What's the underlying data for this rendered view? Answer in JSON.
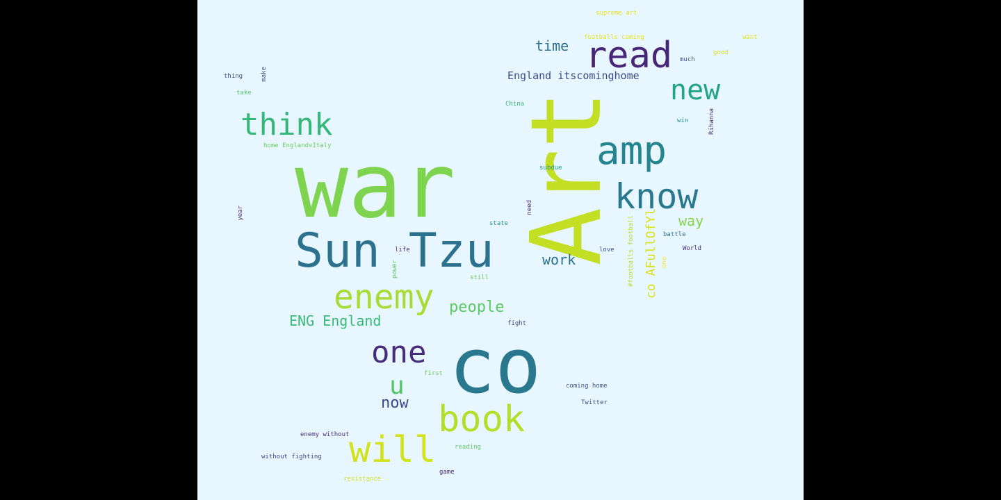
{
  "colors": {
    "background": "#e8f7ff",
    "outside": "#000000"
  },
  "words": [
    {
      "text": "war",
      "color": "#7ed34f"
    },
    {
      "text": "Art",
      "color": "#c2df23"
    },
    {
      "text": "co",
      "color": "#2a788e"
    },
    {
      "text": "Sun Tzu",
      "color": "#2c728e"
    },
    {
      "text": "read",
      "color": "#482677"
    },
    {
      "text": "amp",
      "color": "#25858e"
    },
    {
      "text": "know",
      "color": "#2a788e"
    },
    {
      "text": "new",
      "color": "#20a386"
    },
    {
      "text": "think",
      "color": "#35b779"
    },
    {
      "text": "enemy",
      "color": "#a8db34"
    },
    {
      "text": "book",
      "color": "#b5de2b"
    },
    {
      "text": "will",
      "color": "#d2e21b"
    },
    {
      "text": "one",
      "color": "#472d7b"
    },
    {
      "text": "u",
      "color": "#52c569"
    },
    {
      "text": "now",
      "color": "#3e4989"
    },
    {
      "text": "time",
      "color": "#2e6e8e"
    },
    {
      "text": "England itscominghome",
      "color": "#3e4989"
    },
    {
      "text": "work",
      "color": "#2c728e"
    },
    {
      "text": "way",
      "color": "#86d549"
    },
    {
      "text": "people",
      "color": "#5ec962"
    },
    {
      "text": "ENG England",
      "color": "#3aba76"
    },
    {
      "text": "co AFullOfYl",
      "color": "#d8e219"
    },
    {
      "text": "home EnglandvItaly",
      "color": "#6ccd5a"
    },
    {
      "text": "footballs coming",
      "color": "#e5e419"
    },
    {
      "text": "supreme art",
      "color": "#e5e419"
    },
    {
      "text": "good",
      "color": "#d8e219"
    },
    {
      "text": "want",
      "color": "#dde318"
    },
    {
      "text": "much",
      "color": "#3b528b"
    },
    {
      "text": "thing",
      "color": "#3b528b"
    },
    {
      "text": "take",
      "color": "#52c569"
    },
    {
      "text": "China",
      "color": "#35b779"
    },
    {
      "text": "win",
      "color": "#21918c"
    },
    {
      "text": "subdue",
      "color": "#1f988b"
    },
    {
      "text": "state",
      "color": "#21918c"
    },
    {
      "text": "battle",
      "color": "#2c728e"
    },
    {
      "text": "World",
      "color": "#472d7b"
    },
    {
      "text": "life",
      "color": "#472d7b"
    },
    {
      "text": "love",
      "color": "#3b528b"
    },
    {
      "text": "still",
      "color": "#6ccd5a"
    },
    {
      "text": "fight",
      "color": "#414487"
    },
    {
      "text": "first",
      "color": "#6ccd5a"
    },
    {
      "text": "coming home",
      "color": "#3b528b"
    },
    {
      "text": "Twitter",
      "color": "#3e4989"
    },
    {
      "text": "enemy without",
      "color": "#472d7b"
    },
    {
      "text": "reading",
      "color": "#5ec962"
    },
    {
      "text": "without fighting",
      "color": "#414487"
    },
    {
      "text": "resistance",
      "color": "#d2e21b"
    },
    {
      "text": "game",
      "color": "#482677"
    },
    {
      "text": "year",
      "color": "#482677"
    },
    {
      "text": "make",
      "color": "#3b528b"
    },
    {
      "text": "need",
      "color": "#46337e"
    },
    {
      "text": "Rihanna",
      "color": "#46337e"
    },
    {
      "text": "#footballs football",
      "color": "#b5de2b"
    },
    {
      "text": "one",
      "color": "#fde725"
    },
    {
      "text": "power",
      "color": "#5ec962"
    }
  ]
}
